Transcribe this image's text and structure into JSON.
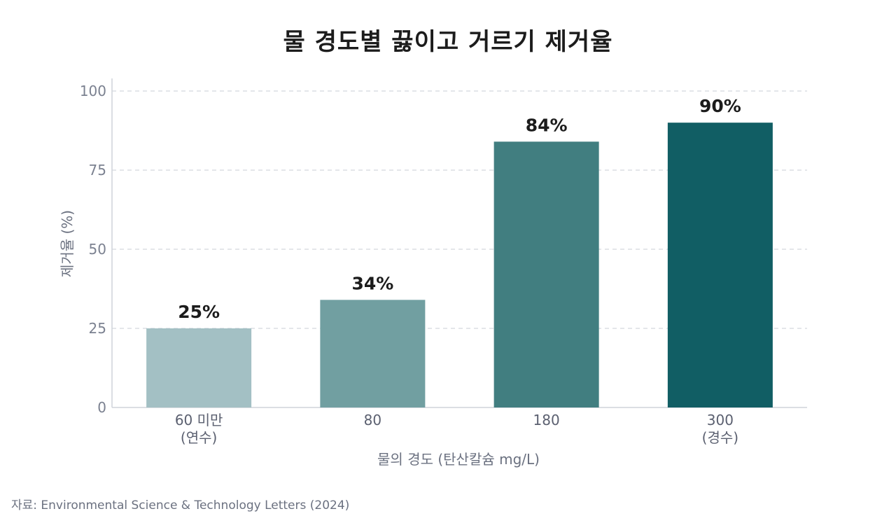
{
  "chart_data": {
    "type": "bar",
    "title": "물 경도별 끓이고 거르기 제거율",
    "categories": [
      [
        "60 미만",
        "(연수)"
      ],
      [
        "80"
      ],
      [
        "180"
      ],
      [
        "300",
        "(경수)"
      ]
    ],
    "values": [
      25,
      34,
      84,
      90
    ],
    "data_labels": [
      "25%",
      "34%",
      "84%",
      "90%"
    ],
    "bar_colors": [
      "#a3c0c4",
      "#719fa1",
      "#417e80",
      "#115e64"
    ],
    "xlabel": "물의 경도 (탄산칼슘 mg/L)",
    "ylabel": "제거율 (%)",
    "ylim": [
      0,
      100
    ],
    "yticks": [
      0,
      25,
      50,
      75,
      100
    ],
    "grid": "horizontal-dashed",
    "legend": "none"
  },
  "source": "자료: Environmental Science & Technology Letters (2024)"
}
